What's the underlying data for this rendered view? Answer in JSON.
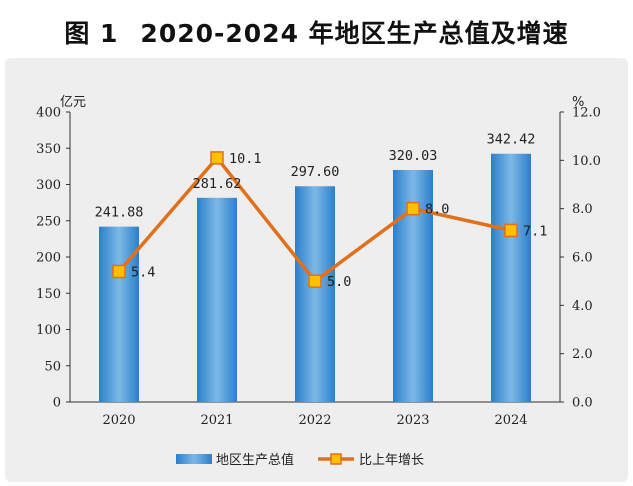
{
  "title": {
    "figure": "图 1",
    "text": "2020-2024 年地区生产总值及增速"
  },
  "colors": {
    "bar_light": "#7db8e6",
    "bar_dark": "#2b7fcc",
    "line": "#e0701c",
    "marker_fill": "#ffc000",
    "marker_stroke": "#e0701c"
  },
  "chart_data": {
    "type": "bar",
    "title": "2020-2024 年地区生产总值及增速",
    "categories": [
      "2020",
      "2021",
      "2022",
      "2023",
      "2024"
    ],
    "series": [
      {
        "name": "地区生产总值",
        "kind": "bar",
        "axis": "left",
        "values": [
          241.88,
          281.62,
          297.6,
          320.03,
          342.42
        ],
        "labels": [
          "241.88",
          "281.62",
          "297.60",
          "320.03",
          "342.42"
        ]
      },
      {
        "name": "比上年增长",
        "kind": "line",
        "axis": "right",
        "values": [
          5.4,
          10.1,
          5.0,
          8.0,
          7.1
        ],
        "labels": [
          "5.4",
          "10.1",
          "5.0",
          "8.0",
          "7.1"
        ]
      }
    ],
    "y_left": {
      "unit": "亿元",
      "ylim": [
        0,
        400
      ],
      "ticks": [
        "0",
        "50",
        "100",
        "150",
        "200",
        "250",
        "300",
        "350",
        "400"
      ]
    },
    "y_right": {
      "unit": "%",
      "ylim": [
        0,
        12
      ],
      "ticks": [
        "0.0",
        "2.0",
        "4.0",
        "6.0",
        "8.0",
        "10.0",
        "12.0"
      ]
    },
    "legend": {
      "placement": "bottom-center"
    },
    "grid": false
  }
}
